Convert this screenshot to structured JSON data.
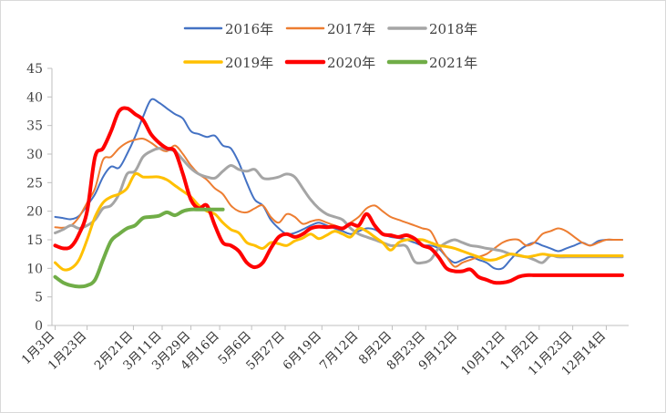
{
  "chart_data": {
    "type": "line",
    "title": "",
    "xlabel": "",
    "ylabel": "",
    "ylim": [
      0,
      45
    ],
    "yticks": [
      0,
      5,
      10,
      15,
      20,
      25,
      30,
      35,
      40,
      45
    ],
    "grid": false,
    "legend_position": "top",
    "xticks": [
      {
        "label": "1月3日",
        "day": 3
      },
      {
        "label": "1月23日",
        "day": 23
      },
      {
        "label": "2月21日",
        "day": 52
      },
      {
        "label": "3月11日",
        "day": 70
      },
      {
        "label": "3月29日",
        "day": 88
      },
      {
        "label": "4月16日",
        "day": 106
      },
      {
        "label": "5月6日",
        "day": 126
      },
      {
        "label": "5月27日",
        "day": 147
      },
      {
        "label": "6月19日",
        "day": 170
      },
      {
        "label": "7月12日",
        "day": 193
      },
      {
        "label": "8月2日",
        "day": 214
      },
      {
        "label": "8月23日",
        "day": 235
      },
      {
        "label": "9月12日",
        "day": 255
      },
      {
        "label": "10月12日",
        "day": 285
      },
      {
        "label": "11月2日",
        "day": 306
      },
      {
        "label": "11月23日",
        "day": 327
      },
      {
        "label": "12月14日",
        "day": 348
      }
    ],
    "xlim": [
      1,
      362
    ],
    "series": [
      {
        "name": "2016年",
        "color": "#4472c4",
        "width": 2,
        "x": [
          3,
          8,
          13,
          18,
          23,
          28,
          33,
          38,
          43,
          48,
          53,
          58,
          63,
          68,
          73,
          78,
          83,
          88,
          93,
          98,
          103,
          108,
          113,
          118,
          123,
          128,
          133,
          138,
          143,
          148,
          153,
          158,
          163,
          168,
          173,
          178,
          183,
          188,
          193,
          198,
          203,
          208,
          213,
          218,
          223,
          228,
          233,
          238,
          243,
          248,
          253,
          258,
          263,
          268,
          273,
          278,
          283,
          288,
          293,
          298,
          303,
          308,
          313,
          318,
          323,
          328,
          333,
          338,
          343,
          348,
          353,
          358
        ],
        "y": [
          19,
          18.8,
          18.6,
          19.2,
          21,
          23,
          26,
          27.8,
          27.6,
          30,
          33,
          36.5,
          39.5,
          39,
          38,
          37,
          36.2,
          34,
          33.5,
          33,
          33.2,
          31.5,
          31,
          28.5,
          25,
          22,
          21,
          18.5,
          17,
          16,
          16.2,
          16.8,
          17.5,
          18,
          17.5,
          17,
          16.5,
          16,
          16.5,
          17,
          16.8,
          16,
          15.5,
          15.3,
          15,
          14.5,
          14,
          14,
          13.5,
          12,
          11,
          11.5,
          12,
          11.5,
          11,
          10,
          10,
          11.5,
          13,
          14,
          14.5,
          14,
          13.5,
          13,
          13.5,
          14,
          14.5,
          14,
          14.8,
          15,
          15,
          15
        ]
      },
      {
        "name": "2017年",
        "color": "#ed7d31",
        "width": 2,
        "x": [
          3,
          8,
          13,
          18,
          23,
          28,
          33,
          38,
          43,
          48,
          53,
          58,
          63,
          68,
          73,
          78,
          83,
          88,
          93,
          98,
          103,
          108,
          113,
          118,
          123,
          128,
          133,
          138,
          143,
          148,
          153,
          158,
          163,
          168,
          173,
          178,
          183,
          188,
          193,
          198,
          203,
          208,
          213,
          218,
          223,
          228,
          233,
          238,
          243,
          248,
          253,
          258,
          263,
          268,
          273,
          278,
          283,
          288,
          293,
          298,
          303,
          308,
          313,
          318,
          323,
          328,
          333,
          338,
          343,
          348,
          353,
          358
        ],
        "y": [
          17.2,
          17.1,
          17.5,
          19,
          21.5,
          24,
          29,
          29.5,
          31,
          32,
          32.5,
          32.7,
          32,
          31,
          30.5,
          31.5,
          30,
          28,
          26.5,
          25.5,
          24,
          23,
          21,
          20,
          19.8,
          20.5,
          21,
          19,
          18,
          19.5,
          19,
          17.8,
          18.2,
          18.5,
          18,
          17.5,
          17,
          18,
          19,
          20.5,
          21,
          20,
          19,
          18.5,
          18,
          17.5,
          17,
          16.5,
          14,
          12,
          10.3,
          11,
          11.5,
          12,
          12.5,
          13.5,
          14.5,
          15,
          15,
          14,
          14.5,
          16,
          16.5,
          17,
          16.5,
          15.5,
          14.5,
          14,
          14.5,
          15,
          15,
          15
        ]
      },
      {
        "name": "2018年",
        "color": "#a5a5a5",
        "width": 3,
        "x": [
          3,
          8,
          13,
          18,
          23,
          28,
          33,
          38,
          43,
          48,
          53,
          58,
          63,
          68,
          73,
          78,
          83,
          88,
          93,
          98,
          103,
          108,
          113,
          118,
          123,
          128,
          133,
          138,
          143,
          148,
          153,
          158,
          163,
          168,
          173,
          178,
          183,
          188,
          193,
          198,
          203,
          208,
          213,
          218,
          223,
          228,
          233,
          238,
          243,
          248,
          253,
          258,
          263,
          268,
          273,
          278,
          283,
          288,
          293,
          298,
          303,
          308,
          313,
          318,
          323,
          328,
          333,
          338,
          343,
          348,
          353,
          358
        ],
        "y": [
          16.2,
          16.8,
          17.5,
          17,
          17.5,
          18.5,
          20.5,
          21,
          23,
          26.5,
          27,
          29.5,
          30.5,
          31,
          30.8,
          30.5,
          29,
          27.5,
          26.5,
          26,
          25.8,
          27,
          28,
          27.3,
          27,
          27.3,
          25.8,
          25.7,
          26,
          26.5,
          26,
          24,
          22,
          20.5,
          19.5,
          19,
          18.5,
          17,
          16,
          15.5,
          15,
          14.5,
          14,
          14,
          13.8,
          11.2,
          11,
          11.5,
          13.5,
          14.5,
          15,
          14.5,
          14,
          13.8,
          13.5,
          13.3,
          13,
          12.5,
          12.2,
          12,
          11.5,
          11,
          12.2,
          12,
          12,
          12,
          12,
          12,
          12,
          12,
          12,
          12
        ]
      },
      {
        "name": "2019年",
        "color": "#ffc000",
        "width": 3,
        "x": [
          3,
          8,
          13,
          18,
          23,
          28,
          33,
          38,
          43,
          48,
          53,
          58,
          63,
          68,
          73,
          78,
          83,
          88,
          93,
          98,
          103,
          108,
          113,
          118,
          123,
          128,
          133,
          138,
          143,
          148,
          153,
          158,
          163,
          168,
          173,
          178,
          183,
          188,
          193,
          198,
          203,
          208,
          213,
          218,
          223,
          228,
          233,
          238,
          243,
          248,
          253,
          258,
          263,
          268,
          273,
          278,
          283,
          288,
          293,
          298,
          303,
          308,
          313,
          318,
          323,
          328,
          333,
          338,
          343,
          348,
          353,
          358
        ],
        "y": [
          11,
          9.8,
          10,
          11.5,
          15,
          19,
          21.5,
          22.5,
          23,
          24,
          26.5,
          26,
          26,
          26,
          25.5,
          24.5,
          23.5,
          22.5,
          21,
          20,
          19.5,
          18,
          16.8,
          16.2,
          14.5,
          14,
          13.5,
          14.5,
          14.3,
          14,
          14.8,
          15.3,
          16,
          15.2,
          15.8,
          16.5,
          16,
          15.5,
          17,
          16.5,
          15.5,
          14.5,
          13.2,
          14.5,
          15,
          15,
          15,
          14.5,
          14,
          13.8,
          13.5,
          13,
          12.5,
          12,
          11.5,
          11.5,
          12,
          12.5,
          12.3,
          12,
          12.2,
          12.5,
          12.3,
          12.2,
          12.2,
          12.2,
          12.2,
          12.2,
          12.2,
          12.2,
          12.2,
          12.2
        ]
      },
      {
        "name": "2020年",
        "color": "#ff0000",
        "width": 4,
        "x": [
          3,
          8,
          13,
          18,
          23,
          28,
          33,
          38,
          43,
          48,
          53,
          58,
          63,
          68,
          73,
          78,
          83,
          88,
          93,
          98,
          103,
          108,
          113,
          118,
          123,
          128,
          133,
          138,
          143,
          148,
          153,
          158,
          163,
          168,
          173,
          178,
          183,
          188,
          193,
          198,
          203,
          208,
          213,
          218,
          223,
          228,
          233,
          238,
          243,
          248,
          253,
          258,
          263,
          268,
          273,
          278,
          283,
          288,
          293,
          298,
          303,
          308,
          313,
          318,
          323,
          328,
          333,
          338,
          343,
          348,
          353,
          358
        ],
        "y": [
          14,
          13.5,
          13.8,
          16,
          20,
          29.5,
          31,
          34,
          37.5,
          38,
          37,
          36,
          33.5,
          32,
          31,
          30.5,
          26.5,
          22,
          20.5,
          21,
          17.5,
          14.5,
          14,
          13,
          11,
          10.2,
          11,
          13.5,
          15.5,
          16,
          15.5,
          16,
          17,
          17.3,
          17.2,
          17.3,
          17,
          17.8,
          17.5,
          19.5,
          17.5,
          16,
          15.8,
          15.5,
          15.8,
          15.2,
          14,
          13.5,
          12,
          10,
          9.5,
          9.5,
          9.8,
          8.5,
          8,
          7.5,
          7.5,
          7.8,
          8.5,
          8.8,
          8.8,
          8.8,
          8.8,
          8.8,
          8.8,
          8.8,
          8.8,
          8.8,
          8.8,
          8.8,
          8.8,
          8.8
        ]
      },
      {
        "name": "2021年",
        "color": "#70ad47",
        "width": 4,
        "x": [
          3,
          8,
          13,
          18,
          23,
          28,
          33,
          38,
          43,
          48,
          53,
          58,
          63,
          68,
          73,
          78,
          83,
          88,
          93,
          98,
          103,
          108
        ],
        "y": [
          8.5,
          7.5,
          7,
          6.8,
          7,
          8,
          11.5,
          14.8,
          16,
          17,
          17.5,
          18.8,
          19,
          19.2,
          19.8,
          19.3,
          20,
          20.3,
          20.3,
          20.3,
          20.3,
          20.3
        ]
      }
    ]
  }
}
